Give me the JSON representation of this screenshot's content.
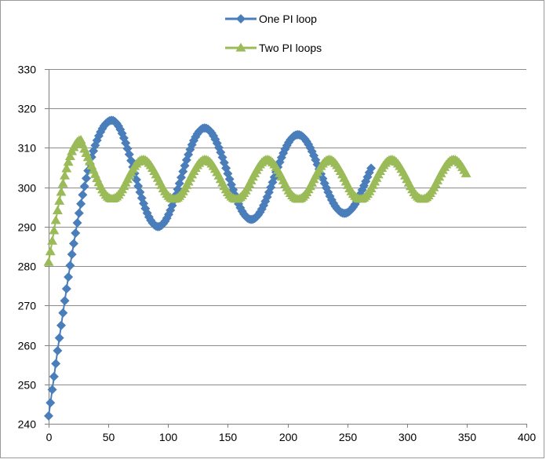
{
  "chart_data": {
    "type": "scatter",
    "title": "",
    "xlabel": "",
    "ylabel": "",
    "xlim": [
      0,
      400
    ],
    "ylim": [
      240,
      330
    ],
    "xticks": [
      0,
      50,
      100,
      150,
      200,
      250,
      300,
      350,
      400
    ],
    "yticks": [
      240,
      250,
      260,
      270,
      280,
      290,
      300,
      310,
      320,
      330
    ],
    "grid": "horizontal",
    "legend_position": "top",
    "series": [
      {
        "name": "One PI loop",
        "marker": "diamond",
        "color": "#4a7ebb",
        "curve": {
          "x_start": 0,
          "x_end": 270,
          "x_step": 1.5,
          "y0": 242,
          "y_peak": 317,
          "x_peak": 53,
          "final": 303,
          "amp_first": 14,
          "amp_decay": 0.86,
          "period": 78
        },
        "key_points": [
          [
            0,
            242
          ],
          [
            10,
            252
          ],
          [
            20,
            272
          ],
          [
            30,
            293
          ],
          [
            40,
            308
          ],
          [
            53,
            317
          ],
          [
            70,
            305
          ],
          [
            92,
            290
          ],
          [
            110,
            303
          ],
          [
            130,
            316
          ],
          [
            150,
            302
          ],
          [
            172,
            290
          ],
          [
            190,
            302
          ],
          [
            208,
            315
          ],
          [
            228,
            302
          ],
          [
            247,
            290
          ],
          [
            270,
            303
          ]
        ]
      },
      {
        "name": "Two PI loops",
        "marker": "triangle",
        "color": "#9bbb59",
        "curve": {
          "x_start": 0,
          "x_end": 350,
          "x_step": 1.5,
          "y0": 281,
          "y_peak": 312,
          "x_peak": 27,
          "final": 302,
          "amp_first": 5,
          "amp_decay": 1.0,
          "period": 52
        },
        "key_points": [
          [
            0,
            281
          ],
          [
            10,
            291
          ],
          [
            20,
            305
          ],
          [
            27,
            312
          ],
          [
            45,
            303
          ],
          [
            62,
            297
          ],
          [
            88,
            307
          ],
          [
            115,
            297
          ],
          [
            140,
            307
          ],
          [
            165,
            297
          ],
          [
            190,
            307
          ],
          [
            218,
            297
          ],
          [
            245,
            307
          ],
          [
            275,
            296
          ],
          [
            298,
            307
          ],
          [
            325,
            297
          ],
          [
            348,
            306
          ]
        ]
      }
    ]
  }
}
